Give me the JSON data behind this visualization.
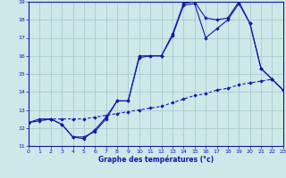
{
  "xlabel": "Graphe des températures (°c)",
  "background_color": "#cce8e8",
  "grid_color": "#aacccc",
  "line_color": "#1515aa",
  "xlim": [
    0,
    23
  ],
  "ylim": [
    11,
    19
  ],
  "xticks": [
    0,
    1,
    2,
    3,
    4,
    5,
    6,
    7,
    8,
    9,
    10,
    11,
    12,
    13,
    14,
    15,
    16,
    17,
    18,
    19,
    20,
    21,
    22,
    23
  ],
  "yticks": [
    11,
    12,
    13,
    14,
    15,
    16,
    17,
    18,
    19
  ],
  "series1_x": [
    0,
    1,
    2,
    3,
    4,
    5,
    6,
    7,
    8,
    9,
    10,
    11,
    12,
    13,
    14,
    15,
    16,
    17,
    18,
    19,
    20,
    21,
    22,
    23
  ],
  "series1_y": [
    12.3,
    12.5,
    12.5,
    12.2,
    11.5,
    11.5,
    11.8,
    12.5,
    13.5,
    13.5,
    15.9,
    16.0,
    16.0,
    17.1,
    18.8,
    18.9,
    17.0,
    17.5,
    18.0,
    18.9,
    17.8,
    15.3,
    14.7,
    14.1
  ],
  "series2_x": [
    0,
    2,
    3,
    4,
    5,
    6,
    7,
    8,
    9,
    10,
    11,
    12,
    13,
    14,
    15,
    16,
    17,
    18,
    19,
    20,
    21,
    22,
    23
  ],
  "series2_y": [
    12.3,
    12.5,
    12.2,
    11.5,
    11.4,
    11.9,
    12.6,
    13.5,
    13.5,
    16.0,
    16.0,
    16.0,
    17.2,
    18.9,
    19.0,
    18.1,
    18.0,
    18.1,
    19.0,
    17.8,
    15.3,
    14.7,
    14.1
  ],
  "series3_x": [
    0,
    1,
    2,
    3,
    4,
    5,
    6,
    7,
    8,
    9,
    10,
    11,
    12,
    13,
    14,
    15,
    16,
    17,
    18,
    19,
    20,
    21,
    22,
    23
  ],
  "series3_y": [
    12.3,
    12.4,
    12.5,
    12.5,
    12.5,
    12.5,
    12.6,
    12.7,
    12.8,
    12.9,
    13.0,
    13.1,
    13.2,
    13.4,
    13.6,
    13.8,
    13.9,
    14.1,
    14.2,
    14.4,
    14.5,
    14.6,
    14.7,
    14.1
  ]
}
